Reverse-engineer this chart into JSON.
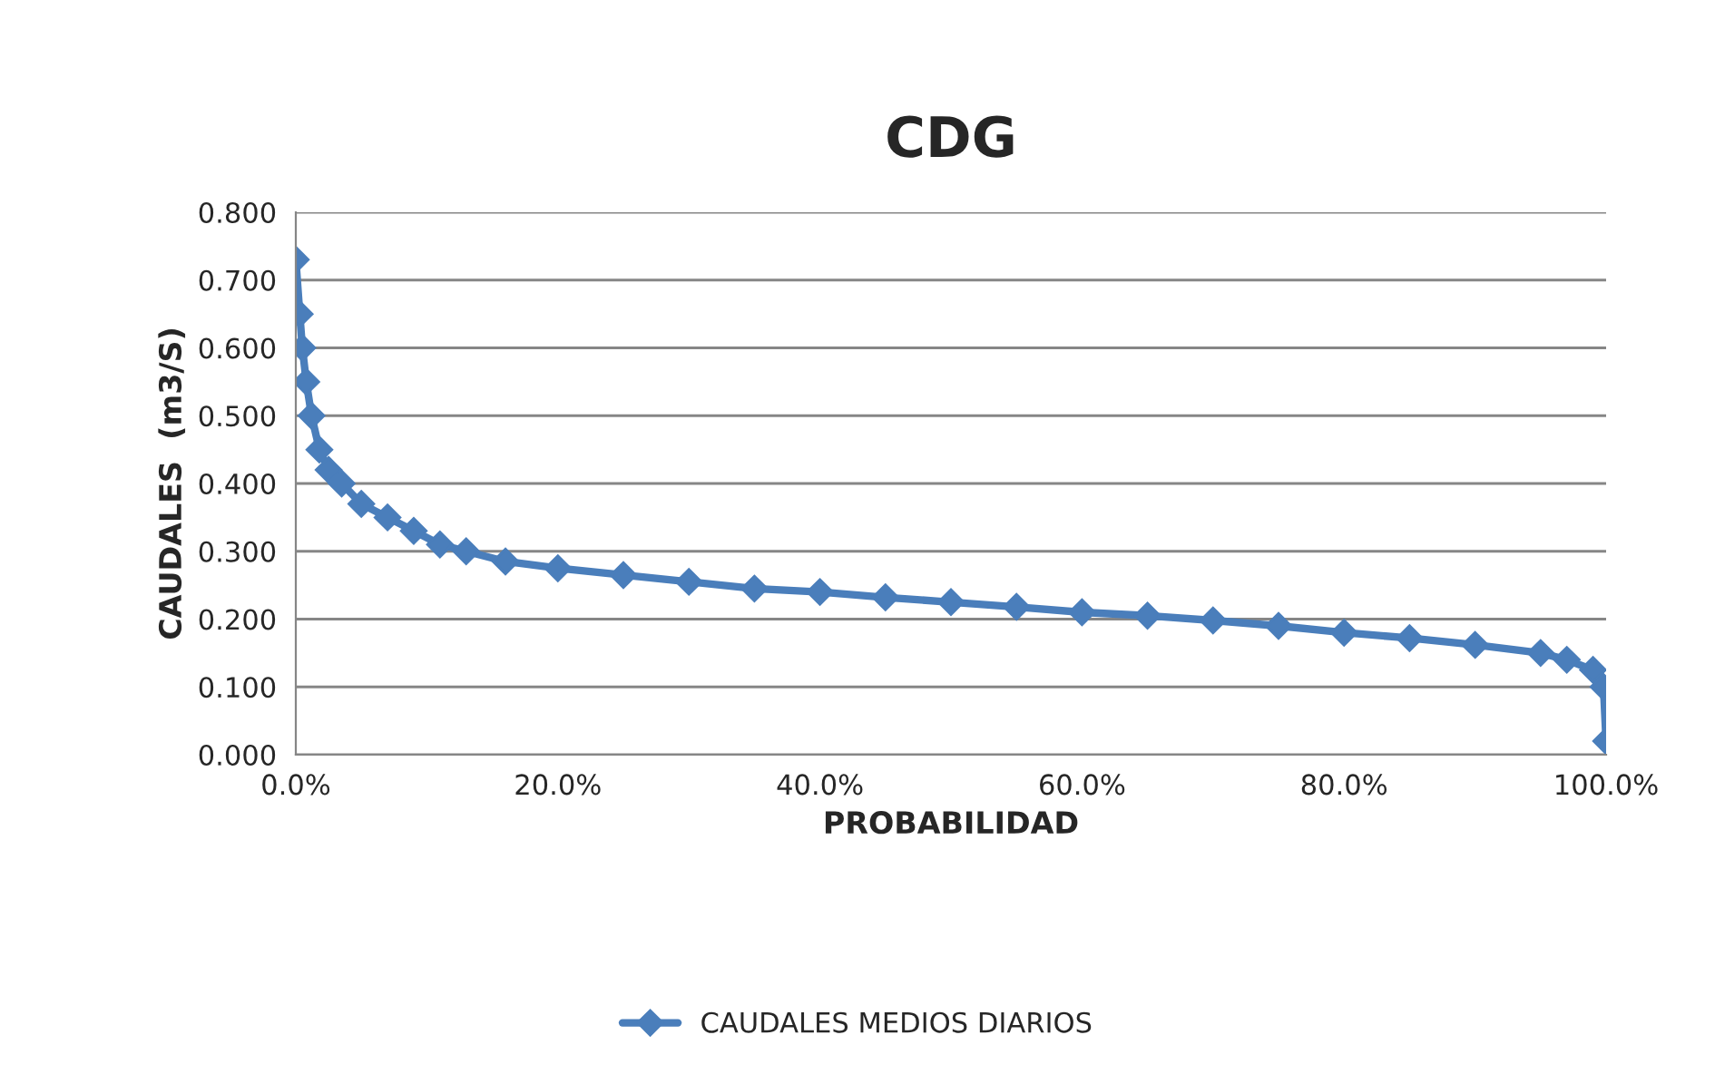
{
  "chart_data": {
    "type": "line",
    "title": "CDG",
    "xlabel": "PROBABILIDAD",
    "ylabel": "CAUDALES  (m3/S)",
    "xlim": [
      0,
      100
    ],
    "xticks": [
      {
        "value": 0,
        "label": "0.0%"
      },
      {
        "value": 20,
        "label": "20.0%"
      },
      {
        "value": 40,
        "label": "40.0%"
      },
      {
        "value": 60,
        "label": "60.0%"
      },
      {
        "value": 80,
        "label": "80.0%"
      },
      {
        "value": 100,
        "label": "100.0%"
      }
    ],
    "ylim": [
      0,
      0.8
    ],
    "yticks": [
      {
        "value": 0,
        "label": "0.000"
      },
      {
        "value": 0.1,
        "label": "0.100"
      },
      {
        "value": 0.2,
        "label": "0.200"
      },
      {
        "value": 0.3,
        "label": "0.300"
      },
      {
        "value": 0.4,
        "label": "0.400"
      },
      {
        "value": 0.5,
        "label": "0.500"
      },
      {
        "value": 0.6,
        "label": "0.600"
      },
      {
        "value": 0.7,
        "label": "0.700"
      },
      {
        "value": 0.8,
        "label": "0.800"
      }
    ],
    "grid": "y",
    "legend": "bottom",
    "marker": "diamond",
    "line_style": "solid",
    "series": [
      {
        "name": "CAUDALES MEDIOS DIARIOS",
        "color": "#4a7ebb",
        "x": [
          0,
          0.3,
          0.5,
          0.8,
          1.2,
          1.8,
          2.5,
          3.5,
          5,
          7,
          9,
          11,
          13,
          16,
          20,
          25,
          30,
          35,
          40,
          45,
          50,
          55,
          60,
          65,
          70,
          75,
          80,
          85,
          90,
          95,
          97,
          99,
          99.8,
          100
        ],
        "values": [
          0.73,
          0.65,
          0.6,
          0.55,
          0.5,
          0.45,
          0.42,
          0.4,
          0.37,
          0.35,
          0.33,
          0.31,
          0.3,
          0.285,
          0.275,
          0.265,
          0.255,
          0.245,
          0.24,
          0.232,
          0.225,
          0.218,
          0.21,
          0.205,
          0.198,
          0.19,
          0.18,
          0.172,
          0.162,
          0.15,
          0.14,
          0.125,
          0.1,
          0.02
        ]
      }
    ]
  }
}
